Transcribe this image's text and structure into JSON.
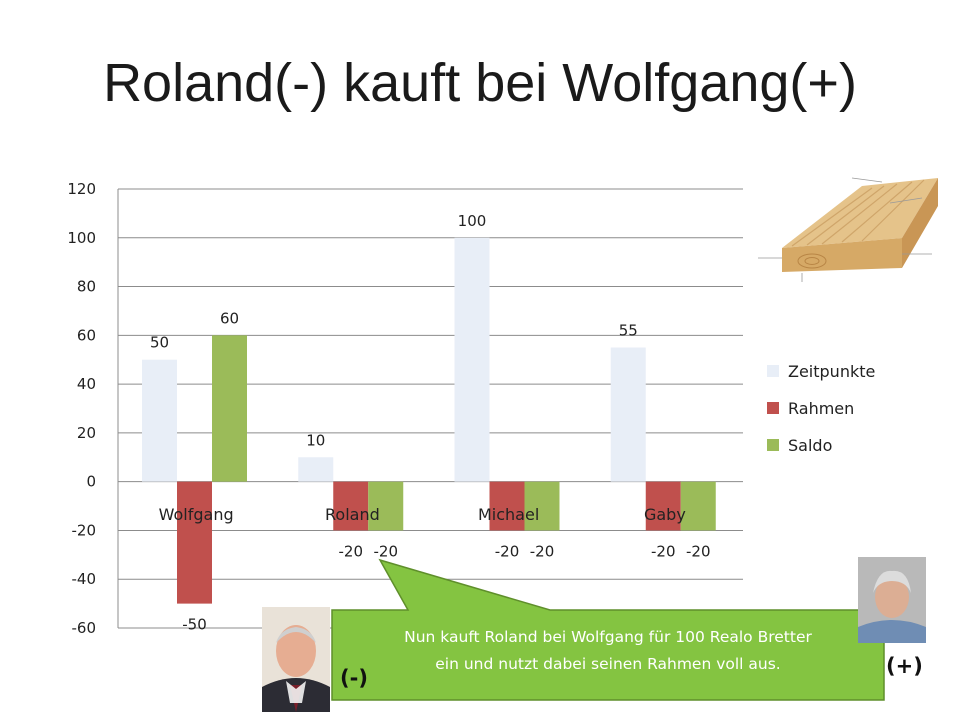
{
  "slide": {
    "title": "Roland(-) kauft bei Wolfgang(+)"
  },
  "chart_data": {
    "type": "bar",
    "categories": [
      "Wolfgang",
      "Roland",
      "Michael",
      "Gaby"
    ],
    "series": [
      {
        "name": "Zeitpunkte",
        "values": [
          50,
          10,
          100,
          55
        ],
        "labels": [
          "50",
          "10",
          "100",
          "55"
        ],
        "color": "#e8eef7"
      },
      {
        "name": "Rahmen",
        "values": [
          -50,
          -20,
          -20,
          -20
        ],
        "labels": [
          "-50",
          "-20",
          "-20",
          "-20"
        ],
        "color": "#c0504d"
      },
      {
        "name": "Saldo",
        "values": [
          60,
          -20,
          -20,
          -20
        ],
        "labels": [
          "60",
          "-20",
          "-20",
          "-20"
        ],
        "color": "#9bbb59"
      }
    ],
    "ylim": [
      -60,
      120
    ],
    "yticks": [
      -60,
      -40,
      -20,
      0,
      20,
      40,
      60,
      80,
      100,
      120
    ],
    "ytick_labels": [
      "-60",
      "-40",
      "-20",
      "0",
      "20",
      "40",
      "60",
      "80",
      "100",
      "120"
    ],
    "grid": true,
    "legend": "right"
  },
  "callout": {
    "text_line1": "Nun kauft Roland bei Wolfgang für 100 Realo Bretter",
    "text_line2": "ein und nutzt dabei seinen Rahmen voll aus.",
    "color": "#84c441"
  },
  "roles": {
    "buyer": "(-)",
    "seller": "(+)"
  }
}
